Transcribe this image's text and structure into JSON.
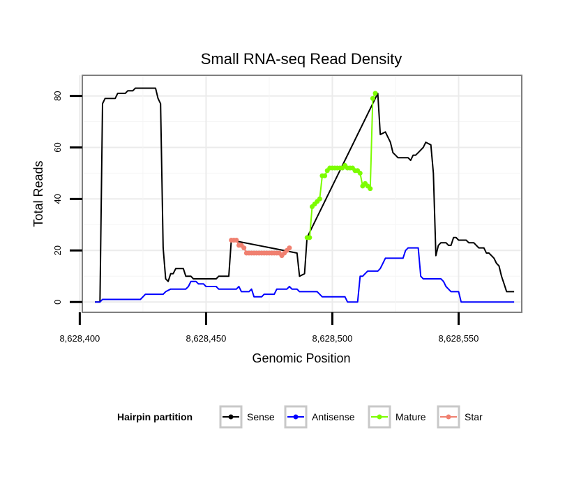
{
  "chart_data": {
    "type": "line",
    "title": "Small RNA-seq Read Density",
    "xlabel": "Genomic Position",
    "ylabel": "Total Reads",
    "xlim": [
      8628401,
      8628575
    ],
    "ylim": [
      -4,
      88
    ],
    "x_ticks": [
      8628400,
      8628450,
      8628500,
      8628550
    ],
    "x_tick_labels": [
      "8,628,400",
      "8,628,450",
      "8,628,500",
      "8,628,550"
    ],
    "y_ticks": [
      0,
      20,
      40,
      60,
      80
    ],
    "y_tick_labels": [
      "0",
      "20",
      "40",
      "60",
      "80"
    ],
    "grid": true,
    "legend": {
      "title": "Hairpin partition",
      "position": "bottom",
      "entries": [
        "Sense",
        "Antisense",
        "Mature",
        "Star"
      ]
    },
    "series": [
      {
        "name": "Sense",
        "color": "#000000",
        "points": [
          [
            8628406,
            0
          ],
          [
            8628408,
            0
          ],
          [
            8628409,
            77
          ],
          [
            8628410,
            79
          ],
          [
            8628414,
            79
          ],
          [
            8628415,
            81
          ],
          [
            8628418,
            81
          ],
          [
            8628419,
            82
          ],
          [
            8628421,
            82
          ],
          [
            8628422,
            83
          ],
          [
            8628425,
            83
          ],
          [
            8628430,
            83
          ],
          [
            8628431,
            79
          ],
          [
            8628432,
            77
          ],
          [
            8628433,
            21
          ],
          [
            8628434,
            9
          ],
          [
            8628435,
            8
          ],
          [
            8628436,
            11
          ],
          [
            8628437,
            11
          ],
          [
            8628438,
            13
          ],
          [
            8628441,
            13
          ],
          [
            8628442,
            10
          ],
          [
            8628444,
            10
          ],
          [
            8628445,
            9
          ],
          [
            8628450,
            9
          ],
          [
            8628454,
            9
          ],
          [
            8628455,
            10
          ],
          [
            8628459,
            10
          ],
          [
            8628460,
            24
          ],
          [
            8628486,
            19
          ],
          [
            8628487,
            10
          ],
          [
            8628489,
            11
          ],
          [
            8628490,
            25
          ],
          [
            8628518,
            81
          ],
          [
            8628519,
            65
          ],
          [
            8628521,
            66
          ],
          [
            8628522,
            64
          ],
          [
            8628523,
            62
          ],
          [
            8628524,
            58
          ],
          [
            8628525,
            57
          ],
          [
            8628526,
            56
          ],
          [
            8628530,
            56
          ],
          [
            8628531,
            55
          ],
          [
            8628532,
            57
          ],
          [
            8628533,
            57
          ],
          [
            8628534,
            58
          ],
          [
            8628536,
            60
          ],
          [
            8628537,
            62
          ],
          [
            8628539,
            61
          ],
          [
            8628540,
            50
          ],
          [
            8628541,
            18
          ],
          [
            8628542,
            22
          ],
          [
            8628543,
            23
          ],
          [
            8628545,
            23
          ],
          [
            8628546,
            22
          ],
          [
            8628547,
            22
          ],
          [
            8628548,
            25
          ],
          [
            8628549,
            25
          ],
          [
            8628550,
            24
          ],
          [
            8628553,
            24
          ],
          [
            8628554,
            23
          ],
          [
            8628556,
            23
          ],
          [
            8628557,
            22
          ],
          [
            8628558,
            21
          ],
          [
            8628560,
            21
          ],
          [
            8628561,
            19
          ],
          [
            8628562,
            19
          ],
          [
            8628563,
            18
          ],
          [
            8628564,
            17
          ],
          [
            8628565,
            15
          ],
          [
            8628566,
            14
          ],
          [
            8628567,
            10
          ],
          [
            8628568,
            7
          ],
          [
            8628569,
            4
          ],
          [
            8628572,
            4
          ]
        ]
      },
      {
        "name": "Antisense",
        "color": "#0000ff",
        "points": [
          [
            8628406,
            0
          ],
          [
            8628408,
            0
          ],
          [
            8628409,
            1
          ],
          [
            8628424,
            1
          ],
          [
            8628425,
            2
          ],
          [
            8628426,
            3
          ],
          [
            8628433,
            3
          ],
          [
            8628434,
            4
          ],
          [
            8628436,
            5
          ],
          [
            8628442,
            5
          ],
          [
            8628443,
            6
          ],
          [
            8628444,
            8
          ],
          [
            8628446,
            8
          ],
          [
            8628447,
            7
          ],
          [
            8628449,
            7
          ],
          [
            8628450,
            6
          ],
          [
            8628454,
            6
          ],
          [
            8628455,
            5
          ],
          [
            8628459,
            5
          ],
          [
            8628460,
            5
          ],
          [
            8628462,
            5
          ],
          [
            8628463,
            6
          ],
          [
            8628464,
            4
          ],
          [
            8628467,
            4
          ],
          [
            8628468,
            5
          ],
          [
            8628469,
            2
          ],
          [
            8628472,
            2
          ],
          [
            8628473,
            3
          ],
          [
            8628477,
            3
          ],
          [
            8628478,
            5
          ],
          [
            8628482,
            5
          ],
          [
            8628483,
            6
          ],
          [
            8628484,
            5
          ],
          [
            8628486,
            5
          ],
          [
            8628487,
            4
          ],
          [
            8628494,
            4
          ],
          [
            8628495,
            3
          ],
          [
            8628496,
            2
          ],
          [
            8628505,
            2
          ],
          [
            8628506,
            0
          ],
          [
            8628510,
            0
          ],
          [
            8628511,
            10
          ],
          [
            8628512,
            10
          ],
          [
            8628513,
            11
          ],
          [
            8628514,
            12
          ],
          [
            8628518,
            12
          ],
          [
            8628519,
            13
          ],
          [
            8628520,
            15
          ],
          [
            8628521,
            17
          ],
          [
            8628528,
            17
          ],
          [
            8628529,
            20
          ],
          [
            8628530,
            21
          ],
          [
            8628534,
            21
          ],
          [
            8628535,
            10
          ],
          [
            8628536,
            9
          ],
          [
            8628543,
            9
          ],
          [
            8628544,
            8
          ],
          [
            8628545,
            6
          ],
          [
            8628546,
            5
          ],
          [
            8628547,
            4
          ],
          [
            8628550,
            4
          ],
          [
            8628551,
            0
          ],
          [
            8628572,
            0
          ]
        ]
      },
      {
        "name": "Mature",
        "color": "#7cfc00",
        "points": [
          [
            8628490,
            25
          ],
          [
            8628491,
            25
          ],
          [
            8628492,
            37
          ],
          [
            8628493,
            38
          ],
          [
            8628494,
            39
          ],
          [
            8628495,
            40
          ],
          [
            8628496,
            49
          ],
          [
            8628497,
            49
          ],
          [
            8628498,
            51
          ],
          [
            8628499,
            52
          ],
          [
            8628500,
            52
          ],
          [
            8628501,
            52
          ],
          [
            8628502,
            52
          ],
          [
            8628503,
            52
          ],
          [
            8628504,
            52
          ],
          [
            8628505,
            53
          ],
          [
            8628506,
            52
          ],
          [
            8628507,
            52
          ],
          [
            8628508,
            52
          ],
          [
            8628509,
            51
          ],
          [
            8628510,
            51
          ],
          [
            8628511,
            50
          ],
          [
            8628512,
            45
          ],
          [
            8628513,
            46
          ],
          [
            8628514,
            45
          ],
          [
            8628515,
            44
          ],
          [
            8628516,
            79
          ],
          [
            8628517,
            81
          ]
        ]
      },
      {
        "name": "Star",
        "color": "#f08070",
        "points": [
          [
            8628460,
            24
          ],
          [
            8628461,
            24
          ],
          [
            8628462,
            24
          ],
          [
            8628463,
            22
          ],
          [
            8628464,
            22
          ],
          [
            8628465,
            21
          ],
          [
            8628466,
            19
          ],
          [
            8628467,
            19
          ],
          [
            8628468,
            19
          ],
          [
            8628469,
            19
          ],
          [
            8628470,
            19
          ],
          [
            8628471,
            19
          ],
          [
            8628472,
            19
          ],
          [
            8628473,
            19
          ],
          [
            8628474,
            19
          ],
          [
            8628475,
            19
          ],
          [
            8628476,
            19
          ],
          [
            8628477,
            19
          ],
          [
            8628478,
            19
          ],
          [
            8628479,
            19
          ],
          [
            8628480,
            18
          ],
          [
            8628481,
            19
          ],
          [
            8628482,
            20
          ],
          [
            8628483,
            21
          ]
        ]
      }
    ]
  }
}
